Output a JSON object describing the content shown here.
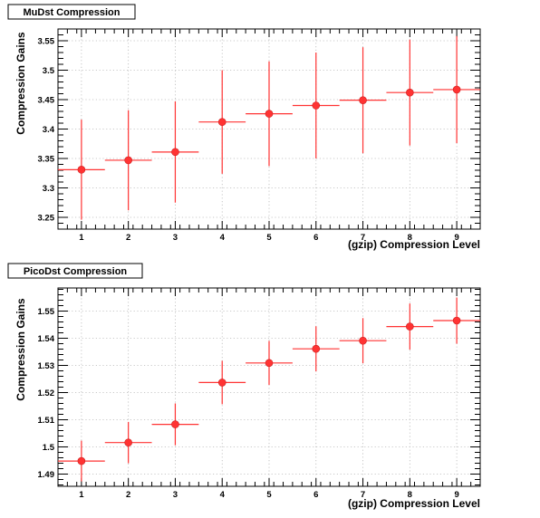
{
  "chart_data": [
    {
      "type": "scatter",
      "title": "MuDst Compression",
      "xlabel": "(gzip) Compression Level",
      "ylabel": "Compression Gains",
      "xlim": [
        0.5,
        9.5
      ],
      "ylim": [
        3.23,
        3.57
      ],
      "xticks": [
        1,
        2,
        3,
        4,
        5,
        6,
        7,
        8,
        9
      ],
      "yticks": [
        3.25,
        3.3,
        3.35,
        3.4,
        3.45,
        3.5,
        3.55
      ],
      "ytick_labels": [
        "3.25",
        "3.3",
        "3.35",
        "3.4",
        "3.45",
        "3.5",
        "3.55"
      ],
      "grid": true,
      "color": "#ff3333",
      "points": [
        {
          "x": 1,
          "y": 3.331,
          "x_err": 0.5,
          "y_err": 0.085
        },
        {
          "x": 2,
          "y": 3.347,
          "x_err": 0.5,
          "y_err": 0.085
        },
        {
          "x": 3,
          "y": 3.361,
          "x_err": 0.5,
          "y_err": 0.086
        },
        {
          "x": 4,
          "y": 3.412,
          "x_err": 0.5,
          "y_err": 0.088
        },
        {
          "x": 5,
          "y": 3.426,
          "x_err": 0.5,
          "y_err": 0.089
        },
        {
          "x": 6,
          "y": 3.44,
          "x_err": 0.5,
          "y_err": 0.09
        },
        {
          "x": 7,
          "y": 3.449,
          "x_err": 0.5,
          "y_err": 0.09
        },
        {
          "x": 8,
          "y": 3.462,
          "x_err": 0.5,
          "y_err": 0.09
        },
        {
          "x": 9,
          "y": 3.467,
          "x_err": 0.5,
          "y_err": 0.091
        }
      ]
    },
    {
      "type": "scatter",
      "title": "PicoDst Compression",
      "xlabel": "(gzip) Compression Level",
      "ylabel": "Compression Gains",
      "xlim": [
        0.5,
        9.5
      ],
      "ylim": [
        1.4855,
        1.5585
      ],
      "xticks": [
        1,
        2,
        3,
        4,
        5,
        6,
        7,
        8,
        9
      ],
      "yticks": [
        1.49,
        1.5,
        1.51,
        1.52,
        1.53,
        1.54,
        1.55
      ],
      "ytick_labels": [
        "1.49",
        "1.5",
        "1.51",
        "1.52",
        "1.53",
        "1.54",
        "1.55"
      ],
      "grid": true,
      "color": "#ff3333",
      "points": [
        {
          "x": 1,
          "y": 1.4948,
          "x_err": 0.5,
          "y_err": 0.0075
        },
        {
          "x": 2,
          "y": 1.5016,
          "x_err": 0.5,
          "y_err": 0.0076
        },
        {
          "x": 3,
          "y": 1.5083,
          "x_err": 0.5,
          "y_err": 0.0077
        },
        {
          "x": 4,
          "y": 1.5237,
          "x_err": 0.5,
          "y_err": 0.008
        },
        {
          "x": 5,
          "y": 1.5309,
          "x_err": 0.5,
          "y_err": 0.0081
        },
        {
          "x": 6,
          "y": 1.5361,
          "x_err": 0.5,
          "y_err": 0.0083
        },
        {
          "x": 7,
          "y": 1.5391,
          "x_err": 0.5,
          "y_err": 0.0083
        },
        {
          "x": 8,
          "y": 1.5443,
          "x_err": 0.5,
          "y_err": 0.0085
        },
        {
          "x": 9,
          "y": 1.5465,
          "x_err": 0.5,
          "y_err": 0.0085
        }
      ]
    }
  ]
}
